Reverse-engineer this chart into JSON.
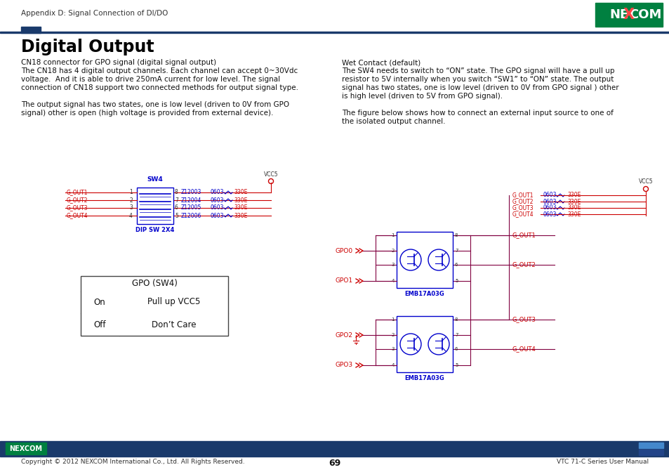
{
  "page_header_text": "Appendix D: Signal Connection of DI/DO",
  "page_number": "69",
  "footer_copyright": "Copyright © 2012 NEXCOM International Co., Ltd. All Rights Reserved.",
  "footer_right": "VTC 71-C Series User Manual",
  "title": "Digital Output",
  "para1_line1": "CN18 connector for GPO signal (digital signal output)",
  "para1_line2": "The CN18 has 4 digital output channels. Each channel can accept 0~30Vdc",
  "para1_line3": "voltage.  And it is able to drive 250mA current for low level. The signal",
  "para1_line4": "connection of CN18 support two connected methods for output signal type.",
  "para2_line1": "The output signal has two states, one is low level (driven to 0V from GPO",
  "para2_line2": "signal) other is open (high voltage is provided from external device).",
  "right_para1_line1": "Wet Contact (default)",
  "right_para1_line2": "The SW4 needs to switch to “ON” state. The GPO signal will have a pull up",
  "right_para1_line3": "resistor to 5V internally when you switch “SW1” to “ON” state. The output",
  "right_para1_line4": "signal has two states, one is low level (driven to 0V from GPO signal ) other",
  "right_para1_line5": "is high level (driven to 5V from GPO signal).",
  "right_para2_line1": "The figure below shows how to connect an external input source to one of",
  "right_para2_line2": "the isolated output channel.",
  "table_header": "GPO (SW4)",
  "table_row1": [
    "On",
    "Pull up VCC5"
  ],
  "table_row2": [
    "Off",
    "Don’t Care"
  ],
  "nexcom_green": "#008040",
  "nexcom_navy": "#1a3a6b",
  "header_bar_color": "#1a3a6b",
  "red_color": "#cc0000",
  "dark_red": "#800040",
  "blue_color": "#0000cc",
  "bg_color": "#ffffff",
  "text_color": "#000000"
}
